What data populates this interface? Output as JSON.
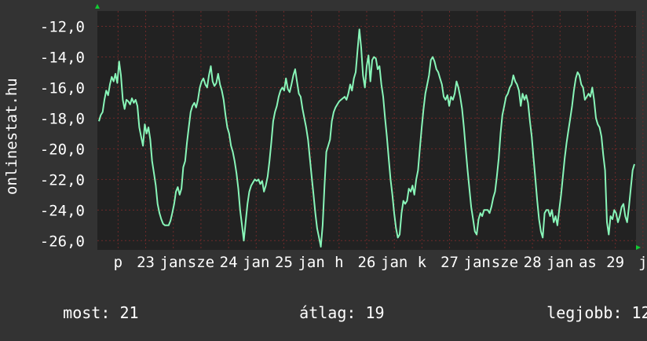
{
  "watermark": "onlinestat.hu",
  "colors": {
    "background": "#333333",
    "plot_background": "#222222",
    "grid": "#6e2a2a",
    "line": "#88f5b8",
    "axis_arrow": "#11cc33",
    "text": "#ffffff"
  },
  "chart_data": {
    "type": "line",
    "ylim": [
      -26.6,
      -11.0
    ],
    "yticks": [
      -12,
      -14,
      -16,
      -18,
      -20,
      -22,
      -24,
      -26
    ],
    "ytick_labels": [
      "-12,0",
      "-14,0",
      "-16,0",
      "-18,0",
      "-20,0",
      "-22,0",
      "-24,0",
      "-26,0"
    ],
    "x_tick_labels": [
      "p",
      "23",
      "jan",
      "sze",
      "24",
      "jan",
      "25",
      "jan",
      "h",
      "26",
      "jan",
      "k",
      "27",
      "jan",
      "sze",
      "28",
      "jan",
      "as",
      "29",
      "j"
    ],
    "series": [
      {
        "values": [
          -18.2,
          -17.8,
          -17.6,
          -16.8,
          -16.2,
          -16.5,
          -15.8,
          -15.3,
          -15.6,
          -15.1,
          -15.7,
          -14.3,
          -15.2,
          -16.8,
          -17.4,
          -16.8,
          -16.9,
          -17.1,
          -16.7,
          -17.0,
          -16.8,
          -17.2,
          -18.6,
          -19.2,
          -19.8,
          -18.4,
          -19.0,
          -18.6,
          -19.4,
          -20.8,
          -21.6,
          -22.4,
          -23.6,
          -24.2,
          -24.6,
          -24.9,
          -25.0,
          -25.0,
          -25.0,
          -24.7,
          -24.2,
          -23.6,
          -22.8,
          -22.5,
          -23.0,
          -22.6,
          -21.2,
          -20.8,
          -19.6,
          -18.6,
          -17.6,
          -17.2,
          -17.0,
          -17.3,
          -16.8,
          -16.0,
          -15.6,
          -15.4,
          -15.8,
          -16.0,
          -15.2,
          -14.6,
          -15.6,
          -15.9,
          -15.7,
          -15.1,
          -15.8,
          -16.2,
          -16.8,
          -17.8,
          -18.6,
          -19.0,
          -19.8,
          -20.2,
          -20.8,
          -21.6,
          -22.6,
          -24.0,
          -25.0,
          -26.0,
          -24.8,
          -23.6,
          -22.8,
          -22.4,
          -22.2,
          -22.0,
          -22.1,
          -22.0,
          -22.3,
          -22.1,
          -22.8,
          -22.4,
          -21.8,
          -20.8,
          -19.6,
          -18.2,
          -17.6,
          -17.2,
          -16.6,
          -16.2,
          -16.0,
          -16.2,
          -15.4,
          -16.1,
          -16.3,
          -15.8,
          -15.2,
          -14.8,
          -15.6,
          -16.4,
          -16.6,
          -17.4,
          -18.0,
          -18.6,
          -19.4,
          -20.6,
          -21.8,
          -23.0,
          -24.2,
          -25.2,
          -25.8,
          -26.4,
          -25.0,
          -22.4,
          -20.2,
          -19.8,
          -19.4,
          -18.2,
          -17.6,
          -17.3,
          -17.1,
          -16.9,
          -16.8,
          -16.7,
          -16.6,
          -16.8,
          -16.4,
          -15.8,
          -16.2,
          -15.4,
          -15.0,
          -13.6,
          -12.2,
          -13.4,
          -15.2,
          -16.0,
          -14.6,
          -13.9,
          -15.6,
          -14.2,
          -14.0,
          -14.1,
          -14.8,
          -14.6,
          -15.8,
          -16.6,
          -18.0,
          -19.2,
          -20.6,
          -22.0,
          -23.0,
          -24.2,
          -25.2,
          -25.8,
          -25.6,
          -24.2,
          -23.4,
          -23.6,
          -23.4,
          -22.6,
          -22.8,
          -22.4,
          -23.0,
          -22.0,
          -21.4,
          -20.0,
          -18.6,
          -17.4,
          -16.4,
          -15.8,
          -15.2,
          -14.2,
          -14.0,
          -14.3,
          -14.8,
          -15.0,
          -15.4,
          -15.8,
          -16.6,
          -16.8,
          -16.5,
          -17.2,
          -16.6,
          -16.8,
          -16.4,
          -15.6,
          -16.0,
          -16.6,
          -17.4,
          -18.6,
          -20.0,
          -21.4,
          -22.6,
          -23.8,
          -24.6,
          -25.4,
          -25.6,
          -24.6,
          -24.2,
          -24.4,
          -24.0,
          -24.0,
          -24.0,
          -24.2,
          -23.8,
          -23.2,
          -22.8,
          -21.8,
          -20.6,
          -19.0,
          -17.8,
          -17.2,
          -16.6,
          -16.4,
          -16.0,
          -15.8,
          -15.2,
          -15.6,
          -15.8,
          -16.2,
          -17.2,
          -16.4,
          -16.8,
          -16.5,
          -17.0,
          -18.2,
          -19.2,
          -20.6,
          -22.0,
          -23.4,
          -24.6,
          -25.4,
          -25.8,
          -24.2,
          -24.0,
          -24.0,
          -24.4,
          -24.0,
          -24.8,
          -24.4,
          -25.0,
          -24.0,
          -23.0,
          -21.8,
          -20.6,
          -19.6,
          -18.8,
          -18.0,
          -17.2,
          -16.2,
          -15.4,
          -15.0,
          -15.2,
          -15.8,
          -16.0,
          -16.8,
          -16.6,
          -16.4,
          -16.6,
          -16.0,
          -16.8,
          -18.0,
          -18.4,
          -18.6,
          -19.2,
          -20.4,
          -21.4,
          -24.8,
          -25.6,
          -24.4,
          -24.6,
          -24.0,
          -24.2,
          -24.8,
          -24.4,
          -23.8,
          -23.6,
          -24.4,
          -24.8,
          -23.8,
          -22.6,
          -21.4,
          -21.0
        ]
      }
    ]
  },
  "stats": {
    "current_label": "most:",
    "current_value": "21",
    "average_label": "átlag:",
    "average_value": "19",
    "best_label": "legjobb:",
    "best_value": "12"
  }
}
